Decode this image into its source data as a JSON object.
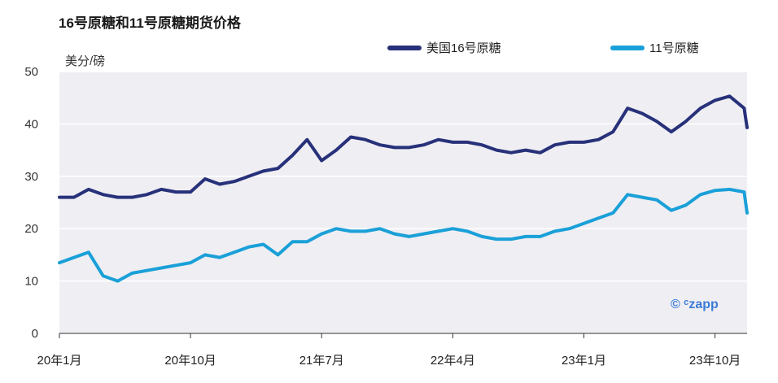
{
  "title": "16号原糖和11号原糖期货价格",
  "unit": "美分/磅",
  "watermark": "© ᶜzapp",
  "legend": [
    {
      "name": "美国16号原糖",
      "color": "#27317a"
    },
    {
      "name": "11号原糖",
      "color": "#1aa0d8"
    }
  ],
  "chart_data": {
    "type": "line",
    "title": "16号原糖和11号原糖期货价格",
    "ylabel": "美分/磅",
    "ylim": [
      0,
      50
    ],
    "yticks": [
      0,
      10,
      20,
      30,
      40,
      50
    ],
    "x_tick_labels": [
      "20年1月",
      "20年10月",
      "21年7月",
      "22年4月",
      "23年1月",
      "23年10月"
    ],
    "x_tick_months": [
      0,
      9,
      18,
      27,
      36,
      45
    ],
    "x_end_month": 47.2,
    "grid": true,
    "legend_position": "top",
    "x": [
      0,
      1,
      2,
      3,
      4,
      5,
      6,
      7,
      8,
      9,
      10,
      11,
      12,
      13,
      14,
      15,
      16,
      17,
      18,
      19,
      20,
      21,
      22,
      23,
      24,
      25,
      26,
      27,
      28,
      29,
      30,
      31,
      32,
      33,
      34,
      35,
      36,
      37,
      38,
      39,
      40,
      41,
      42,
      43,
      44,
      45,
      46,
      47,
      47.2
    ],
    "series": [
      {
        "name": "美国16号原糖",
        "color": "#27317a",
        "values": [
          26,
          26,
          27.5,
          26.5,
          26,
          26,
          26.5,
          27.5,
          27,
          27,
          29.5,
          28.5,
          29,
          30,
          31,
          31.5,
          34,
          37,
          33,
          35,
          37.5,
          37,
          36,
          35.5,
          35.5,
          36,
          37,
          36.5,
          36.5,
          36,
          35,
          34.5,
          35,
          34.5,
          36,
          36.5,
          36.5,
          37,
          38.5,
          43,
          42,
          40.5,
          38.5,
          40.5,
          43,
          44.5,
          45.3,
          43,
          39.3
        ]
      },
      {
        "name": "11号原糖",
        "color": "#1aa0d8",
        "values": [
          13.5,
          14.5,
          15.5,
          11,
          10,
          11.5,
          12,
          12.5,
          13,
          13.5,
          15,
          14.5,
          15.5,
          16.5,
          17,
          15,
          17.5,
          17.5,
          19,
          20,
          19.5,
          19.5,
          20,
          19,
          18.5,
          19,
          19.5,
          20,
          19.5,
          18.5,
          18,
          18,
          18.5,
          18.5,
          19.5,
          20,
          21,
          22,
          23,
          26.5,
          26,
          25.5,
          23.5,
          24.5,
          26.5,
          27.3,
          27.5,
          27,
          23
        ]
      }
    ]
  }
}
